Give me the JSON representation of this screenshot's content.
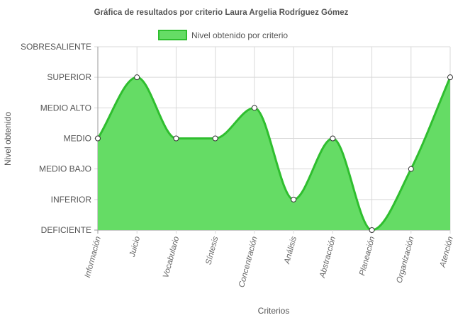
{
  "chart_data": {
    "type": "area",
    "title": "Gráfica de resultados por criterio Laura Argelia Rodríguez Gómez",
    "xlabel": "Criterios",
    "ylabel": "Nivel obtenido",
    "levels": [
      "DEFICIENTE",
      "INFERIOR",
      "MEDIO BAJO",
      "MEDIO",
      "MEDIO ALTO",
      "SUPERIOR",
      "SOBRESALIENTE"
    ],
    "categories": [
      "Información",
      "Juicio",
      "Vocabulario",
      "Síntesis",
      "Concentración",
      "Análisis",
      "Abstracción",
      "Planeación",
      "Organización",
      "Atención"
    ],
    "series": [
      {
        "name": "Nivel obtenido por criterio",
        "values": [
          "MEDIO",
          "SUPERIOR",
          "MEDIO",
          "MEDIO",
          "MEDIO ALTO",
          "INFERIOR",
          "MEDIO",
          "DEFICIENTE",
          "MEDIO BAJO",
          "SUPERIOR"
        ]
      }
    ],
    "ylim": [
      "DEFICIENTE",
      "SOBRESALIENTE"
    ],
    "grid": true,
    "legend": "top",
    "colors": {
      "fill": "#65dc65",
      "line": "#2fbe2f",
      "point_fill": "#ffffff",
      "point_stroke": "#333333",
      "grid": "#d9d9d9",
      "axis": "#999999"
    }
  }
}
